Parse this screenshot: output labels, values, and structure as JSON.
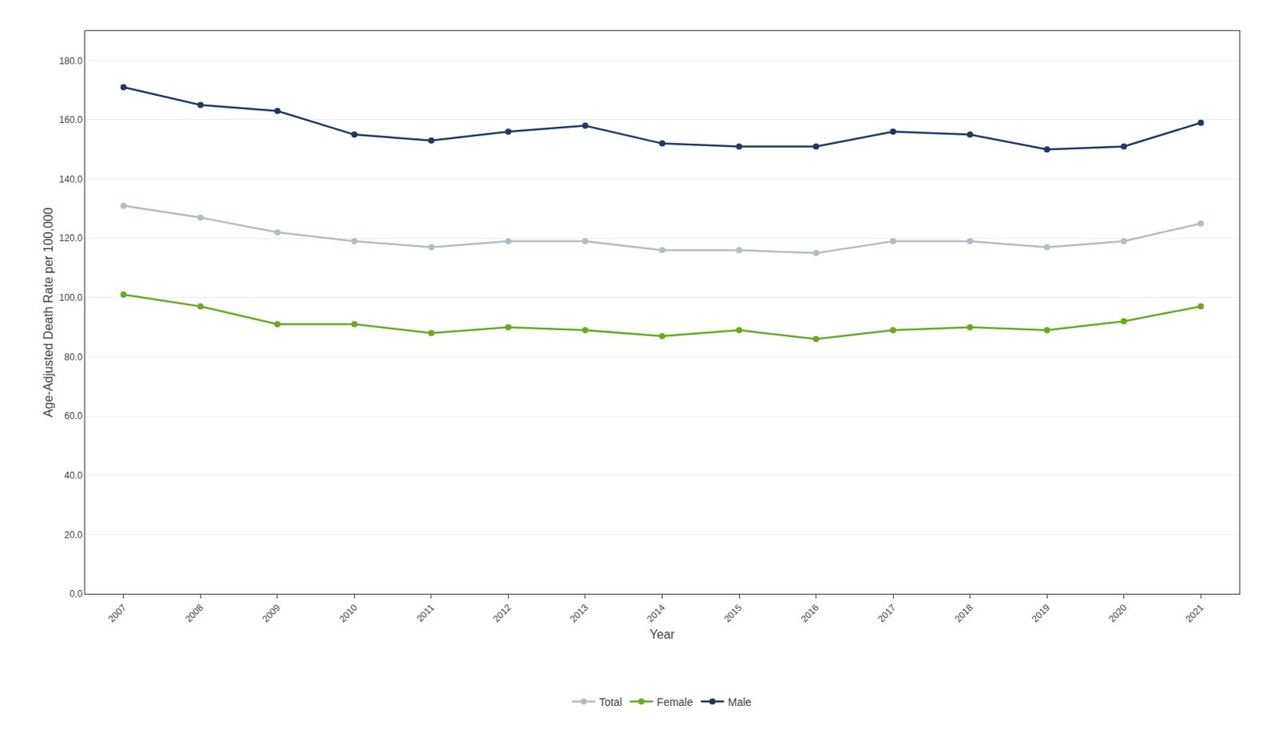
{
  "chart_data": {
    "type": "line",
    "x": [
      2007,
      2008,
      2009,
      2010,
      2011,
      2012,
      2013,
      2014,
      2015,
      2016,
      2017,
      2018,
      2019,
      2020,
      2021
    ],
    "series": [
      {
        "name": "Total",
        "color": "#b0bec5",
        "values": [
          131,
          127,
          122,
          119,
          117,
          119,
          119,
          116,
          116,
          115,
          119,
          119,
          117,
          119,
          125
        ]
      },
      {
        "name": "Female",
        "color": "#6aaa1e",
        "values": [
          101,
          97,
          91,
          91,
          88,
          90,
          89,
          87,
          89,
          86,
          89,
          90,
          89,
          92,
          97
        ]
      },
      {
        "name": "Male",
        "color": "#1f3864",
        "values": [
          171,
          165,
          163,
          155,
          153,
          156,
          158,
          152,
          151,
          151,
          156,
          155,
          150,
          151,
          159
        ]
      }
    ],
    "xlabel": "Year",
    "ylabel": "Age-Adjusted Death Rate per 100,000",
    "xlim": [
      2006.5,
      2021.5
    ],
    "xticks": [
      2007,
      2008,
      2009,
      2010,
      2011,
      2012,
      2013,
      2014,
      2015,
      2016,
      2017,
      2018,
      2019,
      2020,
      2021
    ],
    "ylim": [
      0,
      190
    ],
    "yticks": [
      {
        "value": 0,
        "label": "0.0"
      },
      {
        "value": 20,
        "label": "20.0"
      },
      {
        "value": 40,
        "label": "40.0"
      },
      {
        "value": 60,
        "label": "60.0"
      },
      {
        "value": 80,
        "label": "80.0"
      },
      {
        "value": 100,
        "label": "100.0"
      },
      {
        "value": 120,
        "label": "120.0"
      },
      {
        "value": 140,
        "label": "140.0"
      },
      {
        "value": 160,
        "label": "160.0"
      },
      {
        "value": 180,
        "label": "180.0"
      }
    ],
    "grid": true,
    "legend": "bottom",
    "marker": "circle"
  }
}
